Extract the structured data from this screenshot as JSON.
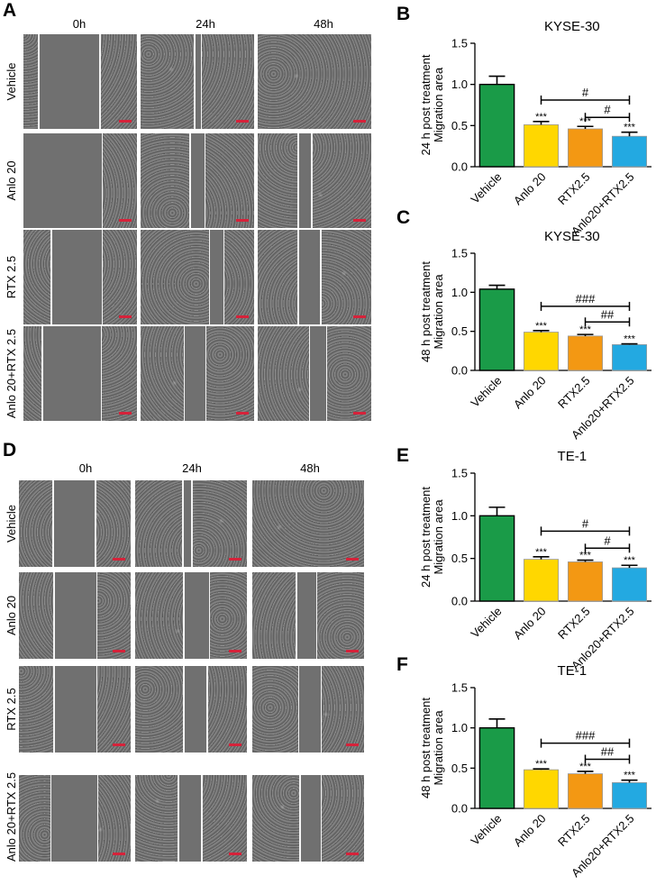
{
  "panels": {
    "A": {
      "label": "A",
      "columns": [
        "0h",
        "24h",
        "48h"
      ],
      "rows": [
        "Vehicle",
        "Anlo 20",
        "RTX 2.5",
        "Anlo 20+RTX 2.5"
      ],
      "gaps": [
        [
          [
            0.13,
            0.67
          ],
          [
            0.47,
            0.53
          ],
          [
            0.5,
            0.5
          ]
        ],
        [
          [
            0.0,
            0.69
          ],
          [
            0.43,
            0.56
          ],
          [
            0.35,
            0.47
          ]
        ],
        [
          [
            0.24,
            0.69
          ],
          [
            0.6,
            0.73
          ],
          [
            0.35,
            0.55
          ]
        ],
        [
          [
            0.16,
            0.68
          ],
          [
            0.38,
            0.57
          ],
          [
            0.45,
            0.6
          ]
        ]
      ]
    },
    "D": {
      "label": "D",
      "columns": [
        "0h",
        "24h",
        "48h"
      ],
      "rows": [
        "Vehicle",
        "Anlo 20",
        "RTX 2.5",
        "Anlo 20+RTX 2.5"
      ],
      "gaps": [
        [
          [
            0.3,
            0.68
          ],
          [
            0.42,
            0.5
          ],
          [
            0.5,
            0.5
          ]
        ],
        [
          [
            0.31,
            0.69
          ],
          [
            0.43,
            0.66
          ],
          [
            0.39,
            0.57
          ]
        ],
        [
          [
            0.31,
            0.69
          ],
          [
            0.43,
            0.64
          ],
          [
            0.41,
            0.61
          ]
        ],
        [
          [
            0.28,
            0.7
          ],
          [
            0.38,
            0.59
          ],
          [
            0.42,
            0.61
          ]
        ]
      ]
    }
  },
  "chart_data": [
    {
      "panel": "B",
      "type": "bar",
      "title": "KYSE-30",
      "ylabel_line1": "24 h post treatment",
      "ylabel_line2": "Migration  area",
      "categories": [
        "Vehicle",
        "Anlo 20",
        "RTX2.5",
        "Anlo20+RTX2.5"
      ],
      "values": [
        1.0,
        0.51,
        0.46,
        0.37
      ],
      "errors": [
        0.1,
        0.04,
        0.03,
        0.05
      ],
      "annotations": [
        "",
        "***",
        "***",
        "***"
      ],
      "colors": [
        "#1a9b48",
        "#ffd700",
        "#f39813",
        "#23a9e1"
      ],
      "ylim": [
        0.0,
        1.5
      ],
      "yticks": [
        "0.0",
        "0.5",
        "1.0",
        "1.5"
      ],
      "ytick_values": [
        0,
        0.5,
        1.0,
        1.5
      ],
      "brackets": [
        {
          "from": 1,
          "to": 3,
          "label": "#",
          "y": 0.81
        },
        {
          "from": 2,
          "to": 3,
          "label": "#",
          "y": 0.6
        }
      ]
    },
    {
      "panel": "C",
      "type": "bar",
      "title": "KYSE-30",
      "ylabel_line1": "48 h post treatment",
      "ylabel_line2": "Migration  area",
      "categories": [
        "Vehicle",
        "Anlo 20",
        "RTX2.5",
        "Anlo20+RTX2.5"
      ],
      "values": [
        1.04,
        0.49,
        0.44,
        0.33
      ],
      "errors": [
        0.05,
        0.02,
        0.02,
        0.01
      ],
      "annotations": [
        "",
        "***",
        "***",
        "***"
      ],
      "colors": [
        "#1a9b48",
        "#ffd700",
        "#f39813",
        "#23a9e1"
      ],
      "ylim": [
        0.0,
        1.5
      ],
      "yticks": [
        "0.0",
        "0.5",
        "1.0",
        "1.5"
      ],
      "ytick_values": [
        0,
        0.5,
        1.0,
        1.5
      ],
      "brackets": [
        {
          "from": 1,
          "to": 3,
          "label": "###",
          "y": 0.82
        },
        {
          "from": 2,
          "to": 3,
          "label": "##",
          "y": 0.62
        }
      ]
    },
    {
      "panel": "E",
      "type": "bar",
      "title": "TE-1",
      "ylabel_line1": "24 h post treatment",
      "ylabel_line2": "Migration  area",
      "categories": [
        "Vehicle",
        "Anlo 20",
        "RTX2.5",
        "Anlo20+RTX2.5"
      ],
      "values": [
        1.0,
        0.49,
        0.46,
        0.39
      ],
      "errors": [
        0.1,
        0.03,
        0.02,
        0.03
      ],
      "annotations": [
        "",
        "***",
        "***",
        "***"
      ],
      "colors": [
        "#1a9b48",
        "#ffd700",
        "#f39813",
        "#23a9e1"
      ],
      "ylim": [
        0.0,
        1.5
      ],
      "yticks": [
        "0.0",
        "0.5",
        "1.0",
        "1.5"
      ],
      "ytick_values": [
        0,
        0.5,
        1.0,
        1.5
      ],
      "brackets": [
        {
          "from": 1,
          "to": 3,
          "label": "#",
          "y": 0.82
        },
        {
          "from": 2,
          "to": 3,
          "label": "#",
          "y": 0.62
        }
      ]
    },
    {
      "panel": "F",
      "type": "bar",
      "title": "TE-1",
      "ylabel_line1": "48 h post treatment",
      "ylabel_line2": "Migration  area",
      "categories": [
        "Vehicle",
        "Anlo 20",
        "RTX2.5",
        "Anlo20+RTX2.5"
      ],
      "values": [
        1.0,
        0.48,
        0.43,
        0.32
      ],
      "errors": [
        0.11,
        0.01,
        0.03,
        0.03
      ],
      "annotations": [
        "",
        "***",
        "***",
        "***"
      ],
      "colors": [
        "#1a9b48",
        "#ffd700",
        "#f39813",
        "#23a9e1"
      ],
      "ylim": [
        0.0,
        1.5
      ],
      "yticks": [
        "0.0",
        "0.5",
        "1.0",
        "1.5"
      ],
      "ytick_values": [
        0,
        0.5,
        1.0,
        1.5
      ],
      "brackets": [
        {
          "from": 1,
          "to": 3,
          "label": "###",
          "y": 0.81
        },
        {
          "from": 2,
          "to": 3,
          "label": "##",
          "y": 0.61
        }
      ]
    }
  ]
}
